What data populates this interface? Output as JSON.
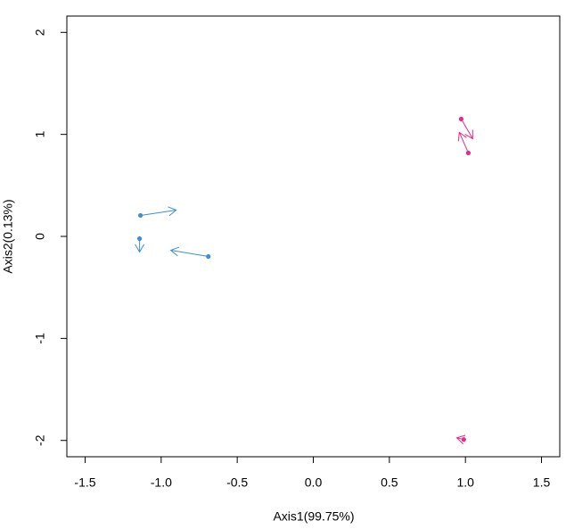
{
  "chart_data": {
    "type": "scatter",
    "x_label": "Axis1(99.75%)",
    "y_label": "Axis2(0.13%)",
    "xlim": [
      -1.62,
      1.62
    ],
    "ylim": [
      -2.16,
      2.16
    ],
    "xticks": [
      -1.5,
      {
        "value": -1,
        "label": "-1.0"
      },
      -0.5,
      {
        "value": 0,
        "label": "0.0"
      },
      0.5,
      {
        "value": 1,
        "label": "1.0"
      },
      1.5
    ],
    "yticks": [
      -2,
      -1,
      0,
      1,
      2
    ],
    "series": [
      {
        "color": "#3f8fd2",
        "x": [
          -1.136,
          -1.142,
          -0.69
        ],
        "y": [
          0.206,
          -0.022,
          -0.197
        ],
        "arrow_x": [
          -0.901,
          -1.142,
          -0.937
        ],
        "arrow_y": [
          0.258,
          -0.153,
          -0.136
        ]
      },
      {
        "color": "#e7298a",
        "x": [
          0.972,
          1.019,
          0.989
        ],
        "y": [
          1.151,
          0.818,
          -1.991
        ],
        "arrow_x": [
          1.048,
          0.96,
          0.943
        ],
        "arrow_y": [
          0.958,
          1.02,
          -1.974
        ]
      }
    ]
  }
}
